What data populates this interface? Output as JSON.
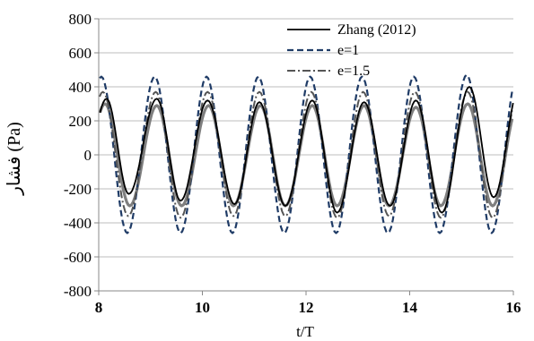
{
  "chart_data": {
    "type": "line",
    "title": "",
    "xlabel": "t/T",
    "ylabel": "فشار (Pa)",
    "xlim": [
      8,
      16
    ],
    "ylim": [
      -800,
      800
    ],
    "x_ticks": [
      "8",
      "10",
      "12",
      "14",
      "16"
    ],
    "y_ticks": [
      "800",
      "600",
      "400",
      "200",
      "0",
      "-200",
      "-400",
      "-600",
      "-800"
    ],
    "grid": "horizontal",
    "legend_position": "top-right",
    "wave_period": 1.0,
    "series": [
      {
        "name": "Zhang (2012)",
        "style": "solid",
        "color": "#000000",
        "x_peaks": [
          8.15,
          9.12,
          10.1,
          11.1,
          12.12,
          13.12,
          14.12,
          15.15
        ],
        "peaks": [
          330,
          330,
          320,
          310,
          320,
          310,
          320,
          400
        ],
        "x_troughs": [
          8.58,
          9.58,
          10.62,
          11.6,
          12.6,
          13.62,
          14.62,
          15.62
        ],
        "troughs": [
          -230,
          -270,
          -290,
          -300,
          -340,
          -300,
          -340,
          -250
        ]
      },
      {
        "name": "e=1",
        "style": "dashed",
        "color": "#1f3b66",
        "x_peaks": [
          8.05,
          9.08,
          10.08,
          11.08,
          12.08,
          13.08,
          14.08,
          15.1
        ],
        "peaks": [
          460,
          460,
          460,
          460,
          460,
          460,
          460,
          470
        ],
        "x_troughs": [
          8.55,
          9.58,
          10.58,
          11.58,
          12.58,
          13.58,
          14.58,
          15.58
        ],
        "troughs": [
          -460,
          -460,
          -460,
          -460,
          -460,
          -460,
          -460,
          -460
        ]
      },
      {
        "name": "e=1.5",
        "style": "dashdot",
        "color": "#555555",
        "x_peaks": [
          8.08,
          9.1,
          10.1,
          11.1,
          12.1,
          13.1,
          14.1,
          15.12
        ],
        "peaks": [
          370,
          370,
          370,
          370,
          370,
          370,
          370,
          370
        ],
        "x_troughs": [
          8.57,
          9.58,
          10.6,
          11.6,
          12.6,
          13.6,
          14.6,
          15.6
        ],
        "troughs": [
          -360,
          -370,
          -360,
          -360,
          -370,
          -360,
          -370,
          -370
        ]
      },
      {
        "name": "",
        "style": "solid-thick",
        "color": "#7f7f7f",
        "x_peaks": [
          8.12,
          9.12,
          10.12,
          11.12,
          12.12,
          13.12,
          14.12,
          15.12
        ],
        "peaks": [
          300,
          290,
          290,
          290,
          290,
          290,
          280,
          300
        ],
        "x_troughs": [
          8.6,
          9.6,
          10.6,
          11.6,
          12.6,
          13.6,
          14.6,
          15.6
        ],
        "troughs": [
          -300,
          -300,
          -300,
          -300,
          -300,
          -300,
          -300,
          -300
        ]
      }
    ]
  }
}
